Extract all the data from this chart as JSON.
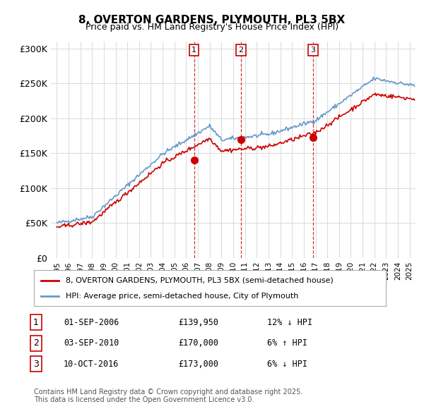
{
  "title": "8, OVERTON GARDENS, PLYMOUTH, PL3 5BX",
  "subtitle": "Price paid vs. HM Land Registry's House Price Index (HPI)",
  "ylabel_ticks": [
    "£0",
    "£50K",
    "£100K",
    "£150K",
    "£200K",
    "£250K",
    "£300K"
  ],
  "ytick_values": [
    0,
    50000,
    100000,
    150000,
    200000,
    250000,
    300000
  ],
  "ylim": [
    0,
    310000
  ],
  "xlim_start": 1994.5,
  "xlim_end": 2025.5,
  "sale_dates": [
    2006.67,
    2010.67,
    2016.78
  ],
  "sale_prices": [
    139950,
    170000,
    173000
  ],
  "sale_labels": [
    "1",
    "2",
    "3"
  ],
  "vline_color": "#cc0000",
  "vline_style": "--",
  "marker_color": "#cc0000",
  "hpi_color": "#6699cc",
  "price_color": "#cc0000",
  "grid_color": "#dddddd",
  "legend_entries": [
    "8, OVERTON GARDENS, PLYMOUTH, PL3 5BX (semi-detached house)",
    "HPI: Average price, semi-detached house, City of Plymouth"
  ],
  "table_data": [
    [
      "1",
      "01-SEP-2006",
      "£139,950",
      "12% ↓ HPI"
    ],
    [
      "2",
      "03-SEP-2010",
      "£170,000",
      "6% ↑ HPI"
    ],
    [
      "3",
      "10-OCT-2016",
      "£173,000",
      "6% ↓ HPI"
    ]
  ],
  "footnote": "Contains HM Land Registry data © Crown copyright and database right 2025.\nThis data is licensed under the Open Government Licence v3.0.",
  "background_color": "#ffffff"
}
